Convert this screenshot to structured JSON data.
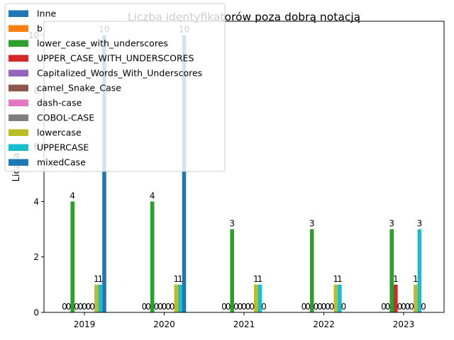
{
  "chart_data": {
    "type": "bar",
    "title": "Liczba identyfikatorów poza dobrą notacją",
    "xlabel": "",
    "ylabel": "Liczba",
    "categories": [
      "2019",
      "2020",
      "2021",
      "2022",
      "2023"
    ],
    "ylim": [
      0,
      10.5
    ],
    "yticks": [
      0,
      2,
      4,
      6,
      8,
      10
    ],
    "grid": false,
    "legend_position": "top-left",
    "series": [
      {
        "name": "Inne",
        "color": "#1f77b4",
        "values": [
          0,
          0,
          0,
          0,
          0
        ]
      },
      {
        "name": "b",
        "color": "#ff7f0e",
        "values": [
          0,
          0,
          0,
          0,
          0
        ]
      },
      {
        "name": "lower_case_with_underscores",
        "color": "#2ca02c",
        "values": [
          4,
          4,
          3,
          3,
          3
        ]
      },
      {
        "name": "UPPER_CASE_WITH_UNDERSCORES",
        "color": "#d62728",
        "values": [
          0,
          0,
          0,
          0,
          1
        ]
      },
      {
        "name": "Capitalized_Words_With_Underscores",
        "color": "#9467bd",
        "values": [
          0,
          0,
          0,
          0,
          0
        ]
      },
      {
        "name": "camel_Snake_Case",
        "color": "#8c564b",
        "values": [
          0,
          0,
          0,
          0,
          0
        ]
      },
      {
        "name": "dash-case",
        "color": "#e377c2",
        "values": [
          0,
          0,
          0,
          0,
          0
        ]
      },
      {
        "name": "COBOL-CASE",
        "color": "#7f7f7f",
        "values": [
          0,
          0,
          0,
          0,
          0
        ]
      },
      {
        "name": "lowercase",
        "color": "#bcbd22",
        "values": [
          1,
          1,
          1,
          1,
          1
        ]
      },
      {
        "name": "UPPERCASE",
        "color": "#17becf",
        "values": [
          1,
          1,
          1,
          1,
          3
        ]
      },
      {
        "name": "mixedCase",
        "color": "#1f77b4",
        "values": [
          10,
          10,
          0,
          0,
          0
        ]
      }
    ]
  }
}
